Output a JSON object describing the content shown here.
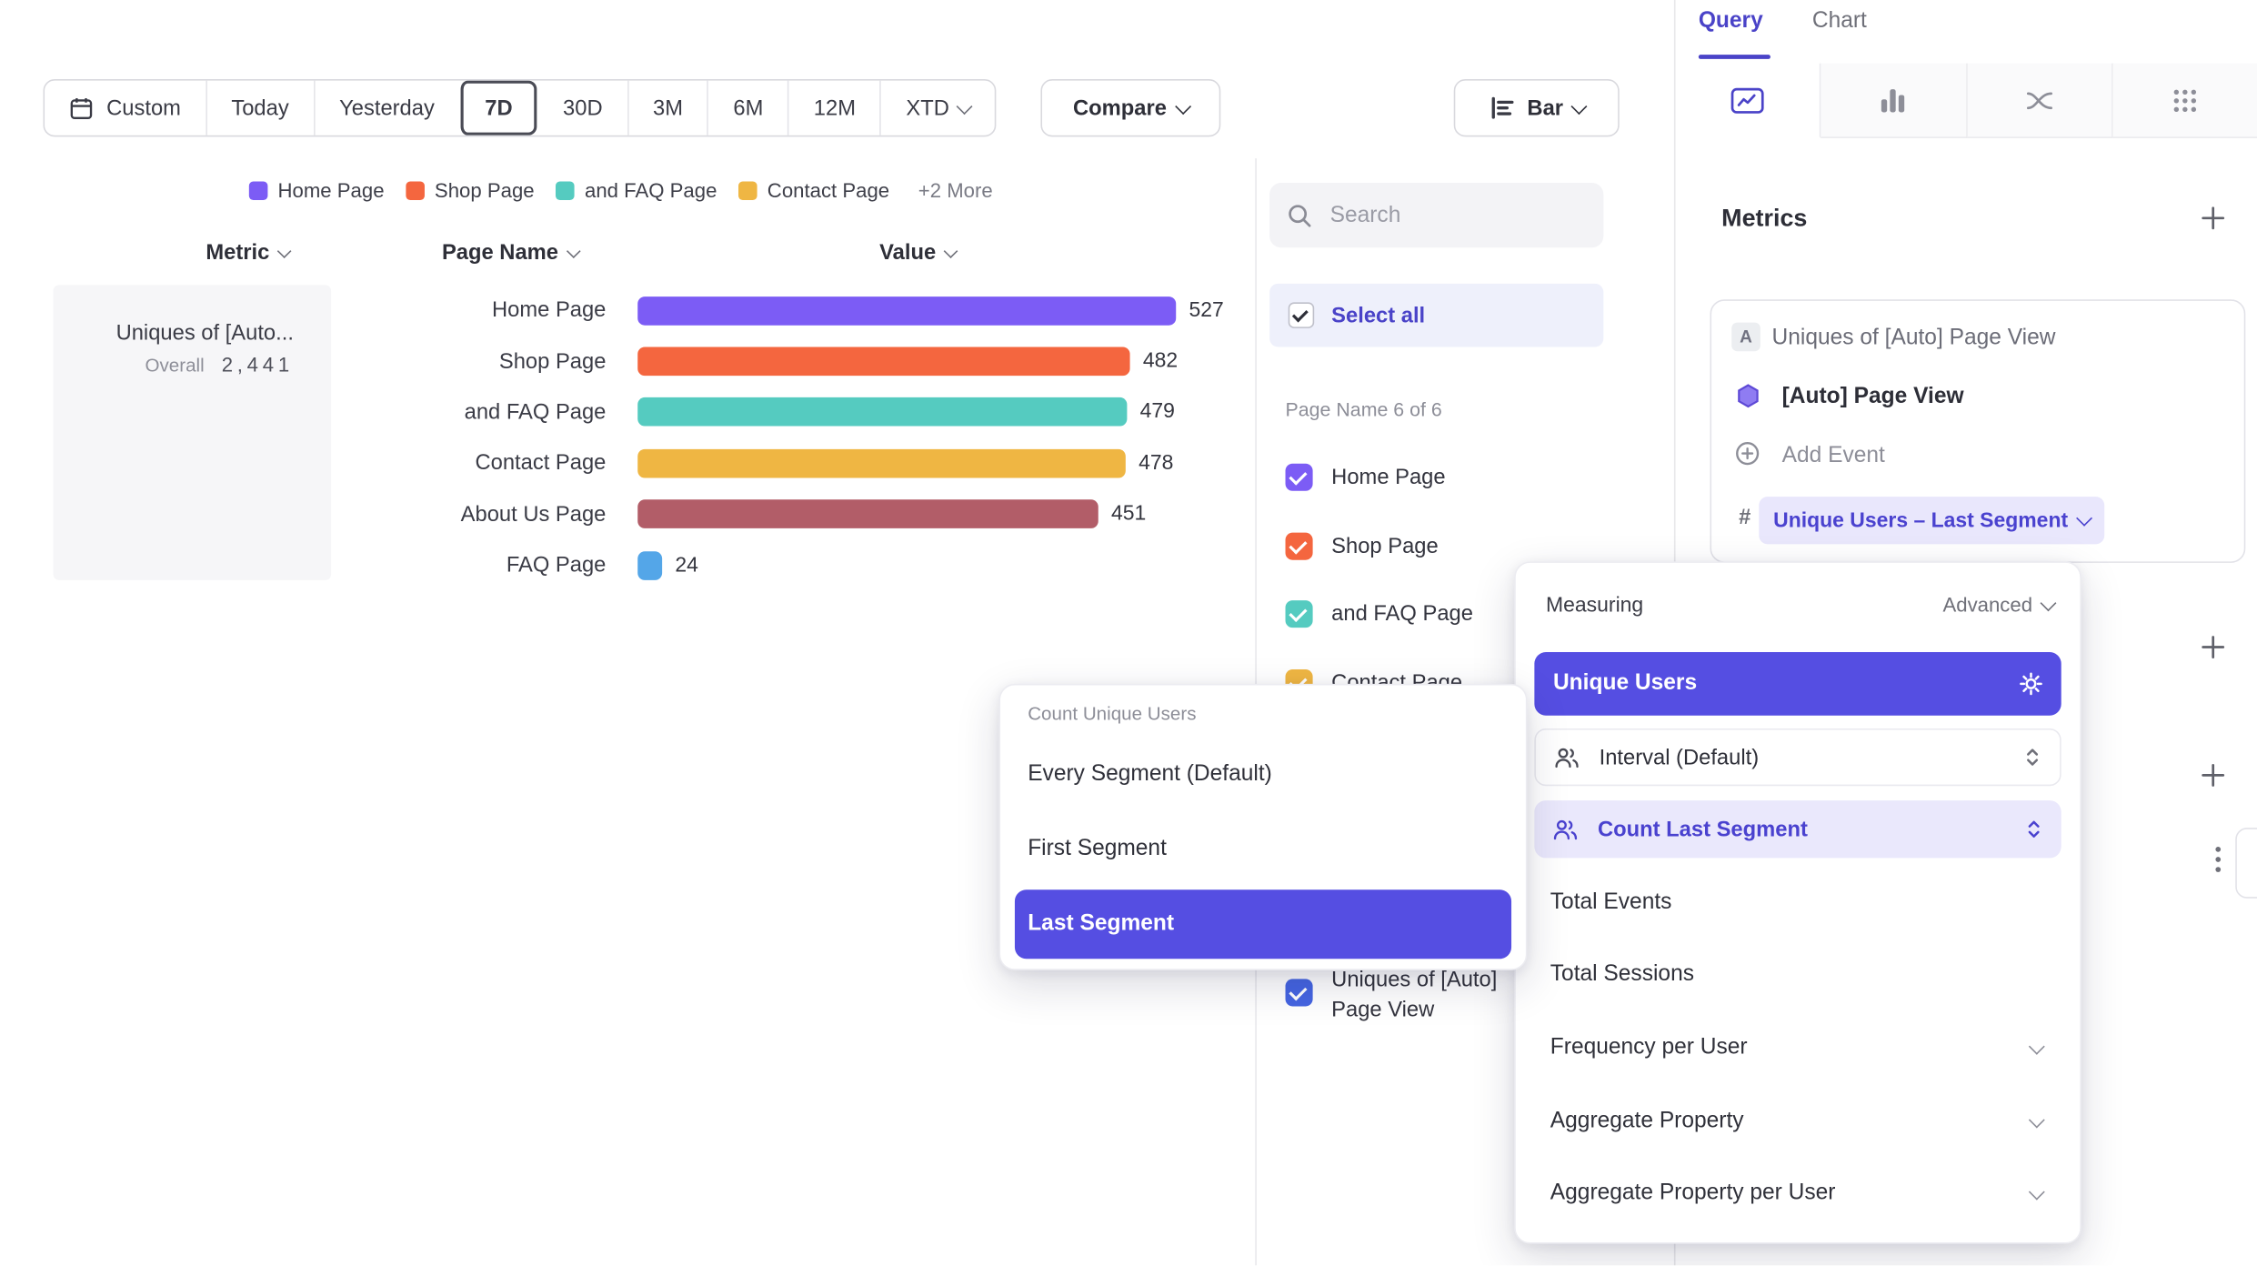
{
  "accent": "#554ee2",
  "toolbar": {
    "custom_label": "Custom",
    "date_presets": [
      "Today",
      "Yesterday",
      "7D",
      "30D",
      "3M",
      "6M",
      "12M",
      "XTD"
    ],
    "selected_preset": "7D",
    "compare_label": "Compare",
    "chart_type_label": "Bar"
  },
  "legend": {
    "items": [
      {
        "label": "Home Page",
        "color": "#7c5cf5"
      },
      {
        "label": "Shop Page",
        "color": "#f4663f"
      },
      {
        "label": "and FAQ Page",
        "color": "#55cbc0"
      },
      {
        "label": "Contact Page",
        "color": "#efb643"
      }
    ],
    "more_label": "+2 More"
  },
  "table_headers": {
    "metric": "Metric",
    "page_name": "Page Name",
    "value": "Value"
  },
  "metric_cell": {
    "title": "Uniques of [Auto...",
    "overall_label": "Overall",
    "overall_value": "2,441"
  },
  "chart_data": {
    "type": "bar",
    "orientation": "horizontal",
    "metric": "Uniques of [Auto] Page View",
    "categories": [
      "Home Page",
      "Shop Page",
      "and FAQ Page",
      "Contact Page",
      "About Us Page",
      "FAQ Page"
    ],
    "values": [
      527,
      482,
      479,
      478,
      451,
      24
    ],
    "colors": [
      "#7c5cf5",
      "#f4663f",
      "#55cbc0",
      "#efb643",
      "#b25d68",
      "#54a6e8"
    ],
    "overall": 2441,
    "xlim": [
      0,
      527
    ],
    "value_labels_shown": true
  },
  "filter_panel": {
    "search_placeholder": "Search",
    "select_all_label": "Select all",
    "group_label": "Page Name 6 of 6",
    "items": [
      {
        "label": "Home Page",
        "color": "#7c5cf5",
        "checked": true
      },
      {
        "label": "Shop Page",
        "color": "#f4663f",
        "checked": true
      },
      {
        "label": "and FAQ Page",
        "color": "#55cbc0",
        "checked": true
      },
      {
        "label": "Contact Page",
        "color": "#efb643",
        "checked": true
      }
    ],
    "metric_item": {
      "label": "Uniques of [Auto] Page View",
      "color": "#4565e2",
      "checked": true
    }
  },
  "query_panel": {
    "tabs": [
      {
        "label": "Query",
        "active": true
      },
      {
        "label": "Chart",
        "active": false
      }
    ],
    "metrics_title": "Metrics",
    "metric_card": {
      "badge": "A",
      "title": "Uniques of [Auto] Page View",
      "event_label": "[Auto] Page View",
      "add_event_label": "Add Event",
      "hash_symbol": "#",
      "measure_pill": "Unique Users – Last Segment"
    }
  },
  "segment_menu": {
    "title": "Count Unique Users",
    "options": [
      {
        "label": "Every Segment (Default)",
        "selected": false
      },
      {
        "label": "First Segment",
        "selected": false
      },
      {
        "label": "Last Segment",
        "selected": true
      }
    ]
  },
  "measuring_menu": {
    "title": "Measuring",
    "advanced_label": "Advanced",
    "primary_option": "Unique Users",
    "interval_option": "Interval (Default)",
    "count_option": "Count Last Segment",
    "options": [
      {
        "label": "Total Events",
        "expandable": false
      },
      {
        "label": "Total Sessions",
        "expandable": false
      },
      {
        "label": "Frequency per User",
        "expandable": true
      },
      {
        "label": "Aggregate Property",
        "expandable": true
      },
      {
        "label": "Aggregate Property per User",
        "expandable": true
      }
    ]
  }
}
